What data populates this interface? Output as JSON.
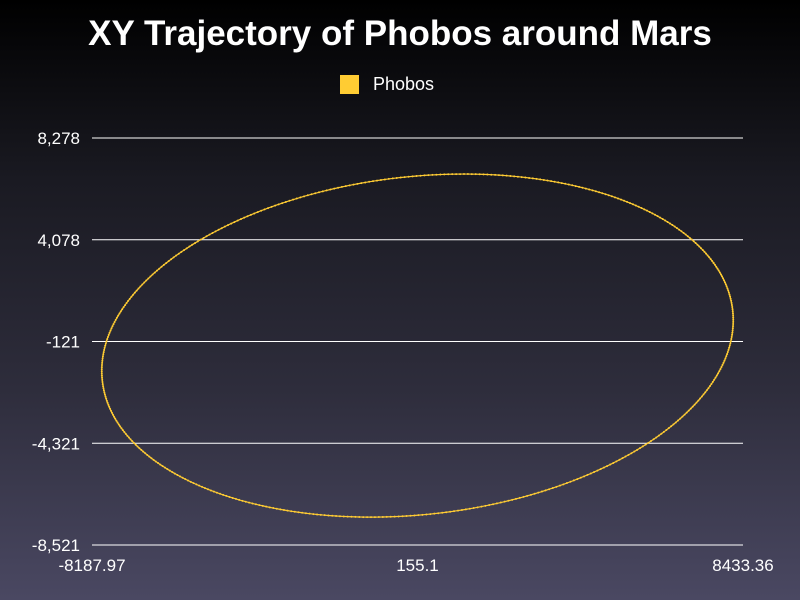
{
  "chart_data": {
    "type": "scatter",
    "title": "XY Trajectory of Phobos around Mars",
    "xlabel": "",
    "ylabel": "",
    "xlim": [
      -8187.97,
      8433.36
    ],
    "ylim": [
      -8521,
      8278
    ],
    "x_ticks": [
      "-8187.97",
      "155.1",
      "8433.36"
    ],
    "y_ticks": [
      "8,278",
      "4,078",
      "-121",
      "-4,321",
      "-8,521"
    ],
    "grid": "horizontal",
    "legend": "top-center",
    "series": [
      {
        "name": "Phobos",
        "color": "#ffcc33",
        "orbit": {
          "center_x": 122.7,
          "center_y": -290.1,
          "semi_axis_x": 8293.5,
          "semi_axis_y": 6806.2,
          "rotation_deg": 24.3
        },
        "x": [
          8433.36,
          7912.5,
          6385.2,
          4010.7,
          1023.2,
          -2238.6,
          -5390.4,
          -8187.97,
          -7676.1,
          -6151.8,
          -3780.1,
          -794.5,
          2466.4,
          5617.2,
          8433.36
        ],
        "y": [
          -121,
          2878,
          5628,
          7628,
          8278,
          8128,
          5878,
          -1621,
          -4121,
          -6621,
          -8121,
          -8521,
          -7621,
          -5321,
          -121
        ]
      }
    ]
  }
}
